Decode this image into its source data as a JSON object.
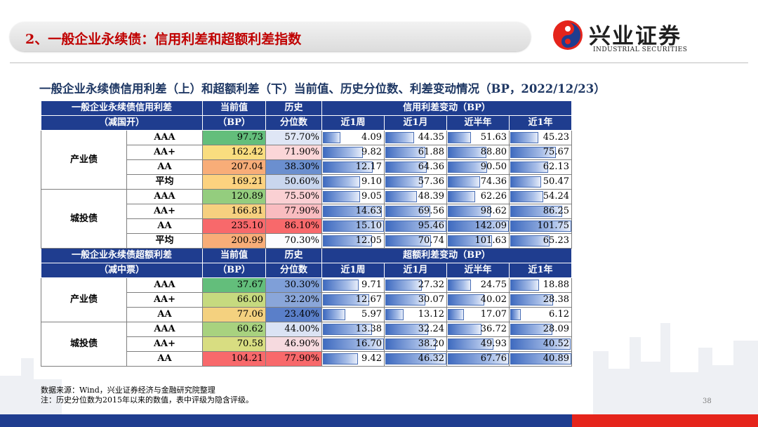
{
  "header": {
    "title": "2、一般企业永续债：信用利差和超额利差指数"
  },
  "logo": {
    "cn": "兴业证券",
    "en": "INDUSTRIAL SECURITIES"
  },
  "subtitle": "一般企业永续债信用利差（上）和超额利差（下）当前值、历史分位数、利差变动情况（BP，2022/12/23）",
  "table1": {
    "h1": [
      "一般企业永续债信用利差",
      "当前值",
      "历史",
      "信用利差变动（BP）"
    ],
    "h2": [
      "（减国开）",
      "（BP）",
      "分位数",
      "近1周",
      "近1月",
      "近半年",
      "近1年"
    ],
    "groups": [
      "产业债",
      "城投债"
    ],
    "rows": [
      [
        "AAA",
        "97.73",
        "57.70%",
        "4.09",
        "44.35",
        "51.63",
        "45.23"
      ],
      [
        "AA+",
        "162.42",
        "71.90%",
        "9.82",
        "61.88",
        "88.80",
        "75.67"
      ],
      [
        "AA",
        "207.04",
        "38.30%",
        "12.17",
        "64.36",
        "90.50",
        "62.13"
      ],
      [
        "平均",
        "169.21",
        "50.60%",
        "9.10",
        "57.36",
        "74.36",
        "50.47"
      ],
      [
        "AAA",
        "120.89",
        "75.50%",
        "9.05",
        "48.39",
        "62.26",
        "54.24"
      ],
      [
        "AA+",
        "166.81",
        "77.90%",
        "14.63",
        "69.56",
        "98.62",
        "86.25"
      ],
      [
        "AA",
        "235.10",
        "86.10%",
        "15.10",
        "95.46",
        "142.09",
        "101.75"
      ],
      [
        "平均",
        "200.99",
        "70.30%",
        "12.05",
        "70.74",
        "101.63",
        "65.23"
      ]
    ]
  },
  "table2": {
    "h1": [
      "一般企业永续债超额利差",
      "当前值",
      "历史",
      "超额利差变动（BP）"
    ],
    "h2": [
      "（减中票）",
      "（BP）",
      "分位数",
      "近1周",
      "近1月",
      "近半年",
      "近1年"
    ],
    "groups": [
      "产业债",
      "城投债"
    ],
    "rows": [
      [
        "AAA",
        "37.67",
        "30.30%",
        "9.71",
        "27.32",
        "24.75",
        "18.88"
      ],
      [
        "AA+",
        "66.00",
        "32.20%",
        "12.67",
        "30.07",
        "40.02",
        "28.38"
      ],
      [
        "AA",
        "77.06",
        "23.40%",
        "5.97",
        "13.12",
        "17.07",
        "6.12"
      ],
      [
        "AAA",
        "60.62",
        "44.00%",
        "13.38",
        "32.24",
        "36.72",
        "28.09"
      ],
      [
        "AA+",
        "70.58",
        "46.90%",
        "16.70",
        "38.20",
        "49.93",
        "40.52"
      ],
      [
        "AA",
        "104.21",
        "77.90%",
        "9.42",
        "46.32",
        "67.76",
        "40.89"
      ]
    ]
  },
  "colors": {
    "current_t1": [
      "#63be7b",
      "#f9dd7f",
      "#f8ad78",
      "#fcd27f",
      "#94cd7e",
      "#f6d07f",
      "#f8696b",
      "#f8ad78"
    ],
    "pct_t1": [
      "#dfe6f5",
      "#fbd6d8",
      "#6b8fcf",
      "#c9d6ee",
      "#fad0d3",
      "#f9bcc0",
      "#f8696b",
      "#fbfbfe"
    ],
    "current_t2": [
      "#63be7b",
      "#c6da7f",
      "#f4d17f",
      "#a8d27f",
      "#d8dd81",
      "#f8696b"
    ],
    "pct_t2": [
      "#7f9fd8",
      "#8aa6d9",
      "#5a7fc9",
      "#dbe3f4",
      "#f6dadf",
      "#f8696b"
    ],
    "header_blue": "#1f3d8f",
    "title_red": "#c00000",
    "bottom_red": "#e5241b"
  },
  "notes": [
    "数据来源：Wind，兴业证券经济与金融研究院整理",
    "注：历史分位数为2015年以来的数值，表中评级为隐含评级。"
  ],
  "page_number": "38"
}
